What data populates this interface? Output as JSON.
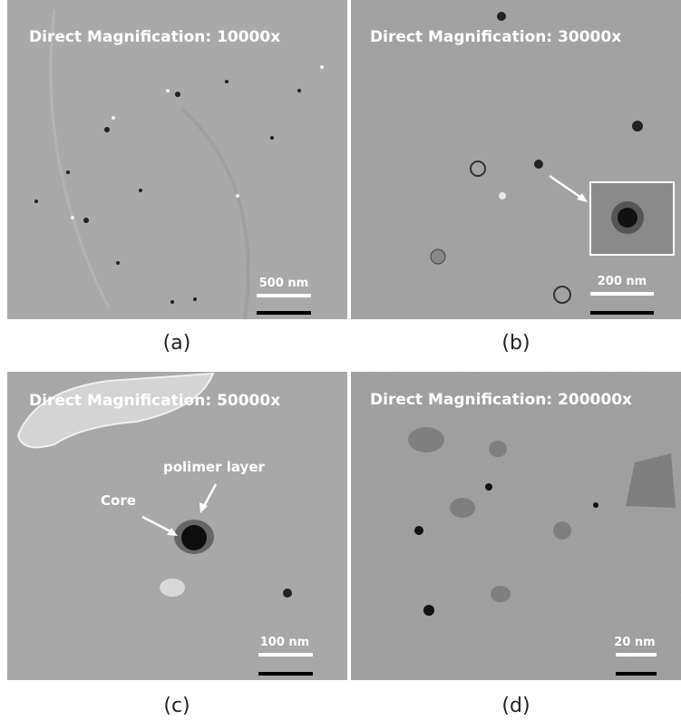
{
  "panels": [
    {
      "magnification": "Direct Magnification: 10000x",
      "scale_bar": "500 nm",
      "caption": "(a)"
    },
    {
      "magnification": "Direct Magnification: 30000x",
      "scale_bar": "200 nm",
      "caption": "(b)"
    },
    {
      "magnification": "Direct Magnification: 50000x",
      "scale_bar": "100 nm",
      "caption": "(c)",
      "annotations": [
        "polimer layer",
        "Core"
      ]
    },
    {
      "magnification": "Direct Magnification: 200000x",
      "scale_bar": "20 nm",
      "caption": "(d)"
    }
  ]
}
